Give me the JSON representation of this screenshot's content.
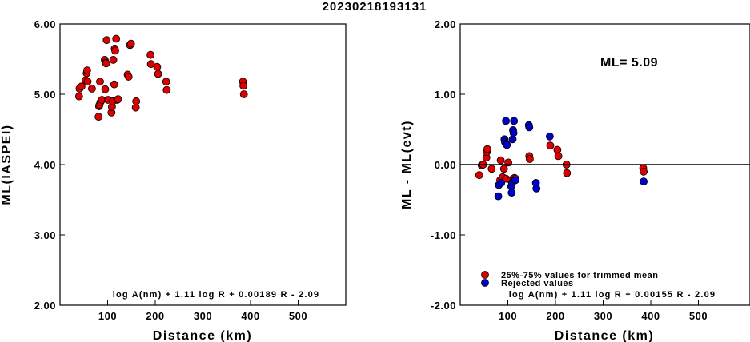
{
  "title": "20230218193131",
  "colors": {
    "accepted": "#dd0000",
    "rejected": "#0000cc",
    "axis": "#000000"
  },
  "chart_data": [
    {
      "type": "scatter",
      "xlabel": "Distance (km)",
      "ylabel": "ML(IASPEI)",
      "xlim": [
        0,
        600
      ],
      "ylim": [
        2,
        6
      ],
      "x_ticks": [
        "100",
        "200",
        "300",
        "400",
        "500"
      ],
      "y_ticks": [
        "2.00",
        "3.00",
        "4.00",
        "5.00",
        "6.00"
      ],
      "formula": "log A(nm) + 1.11 log R + 0.00189 R - 2.09",
      "series": [
        {
          "marker": "accepted",
          "points": [
            [
              40,
              4.97
            ],
            [
              41,
              5.08
            ],
            [
              45,
              5.11
            ],
            [
              54,
              5.2
            ],
            [
              56,
              5.3
            ],
            [
              57,
              5.34
            ],
            [
              58,
              5.18
            ],
            [
              67,
              5.08
            ],
            [
              81,
              4.68
            ],
            [
              82,
              4.83
            ],
            [
              83,
              4.85
            ],
            [
              84,
              5.18
            ],
            [
              85,
              4.89
            ],
            [
              88,
              4.92
            ],
            [
              94,
              5.49
            ],
            [
              95,
              5.07
            ],
            [
              96,
              5.45
            ],
            [
              97,
              5.44
            ],
            [
              98,
              5.77
            ],
            [
              101,
              4.92
            ],
            [
              108,
              4.74
            ],
            [
              109,
              4.82
            ],
            [
              111,
              4.9
            ],
            [
              112,
              5.49
            ],
            [
              114,
              5.14
            ],
            [
              115,
              5.65
            ],
            [
              116,
              5.62
            ],
            [
              118,
              5.79
            ],
            [
              120,
              4.92
            ],
            [
              122,
              4.93
            ],
            [
              142,
              5.28
            ],
            [
              144,
              5.25
            ],
            [
              147,
              5.7
            ],
            [
              149,
              5.72
            ],
            [
              159,
              4.81
            ],
            [
              160,
              4.9
            ],
            [
              190,
              5.56
            ],
            [
              191,
              5.43
            ],
            [
              204,
              5.39
            ],
            [
              206,
              5.29
            ],
            [
              223,
              5.18
            ],
            [
              224,
              5.06
            ],
            [
              384,
              5.18
            ],
            [
              385,
              5.12
            ],
            [
              386,
              5.0
            ]
          ]
        }
      ]
    },
    {
      "type": "scatter",
      "xlabel": "Distance (km)",
      "ylabel": "ML - ML(evt)",
      "xlim": [
        0,
        600
      ],
      "ylim": [
        -2,
        2
      ],
      "x_ticks": [
        "100",
        "200",
        "300",
        "400",
        "500"
      ],
      "y_ticks": [
        "-2.00",
        "-1.00",
        "0.00",
        "1.00",
        "2.00"
      ],
      "annotation": "ML= 5.09",
      "formula": "log A(nm) + 1.11 log R + 0.00155 R - 2.09",
      "legend": {
        "position": "bottom-left",
        "entries": [
          {
            "marker": "accepted",
            "label": "25%-75% values for trimmed mean"
          },
          {
            "marker": "rejected",
            "label": "Rejected values"
          }
        ]
      },
      "series": [
        {
          "marker": "accepted",
          "points": [
            [
              40,
              -0.15
            ],
            [
              45,
              -0.01
            ],
            [
              48,
              0.0
            ],
            [
              55,
              0.1
            ],
            [
              56,
              0.18
            ],
            [
              57,
              0.22
            ],
            [
              66,
              -0.06
            ],
            [
              84,
              -0.22
            ],
            [
              85,
              0.06
            ],
            [
              88,
              -0.2
            ],
            [
              89,
              -0.18
            ],
            [
              92,
              -0.06
            ],
            [
              96,
              -0.2
            ],
            [
              101,
              0.03
            ],
            [
              106,
              -0.22
            ],
            [
              112,
              -0.2
            ],
            [
              114,
              -0.19
            ],
            [
              116,
              -0.2
            ],
            [
              145,
              0.12
            ],
            [
              146,
              0.08
            ],
            [
              189,
              0.27
            ],
            [
              204,
              0.21
            ],
            [
              206,
              0.12
            ],
            [
              223,
              0.0
            ],
            [
              224,
              -0.12
            ],
            [
              384,
              -0.05
            ],
            [
              385,
              -0.1
            ]
          ]
        },
        {
          "marker": "rejected",
          "points": [
            [
              80,
              -0.45
            ],
            [
              81,
              -0.29
            ],
            [
              86,
              -0.26
            ],
            [
              93,
              0.36
            ],
            [
              94,
              0.32
            ],
            [
              96,
              0.62
            ],
            [
              97,
              0.3
            ],
            [
              98,
              0.28
            ],
            [
              107,
              -0.31
            ],
            [
              108,
              -0.4
            ],
            [
              109,
              -0.26
            ],
            [
              110,
              0.36
            ],
            [
              111,
              0.49
            ],
            [
              112,
              0.45
            ],
            [
              113,
              0.62
            ],
            [
              116,
              -0.22
            ],
            [
              144,
              0.56
            ],
            [
              145,
              0.53
            ],
            [
              159,
              -0.26
            ],
            [
              160,
              -0.34
            ],
            [
              188,
              0.4
            ],
            [
              385,
              -0.24
            ]
          ]
        }
      ]
    }
  ]
}
